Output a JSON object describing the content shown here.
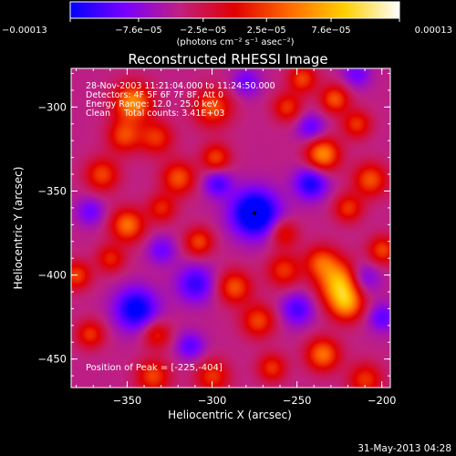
{
  "chart_data": {
    "type": "heatmap",
    "title": "Reconstructed RHESSI Image",
    "xlabel": "Heliocentric X (arcsec)",
    "ylabel": "Heliocentric Y (arcsec)",
    "xlim": [
      -383,
      -195
    ],
    "ylim": [
      -467,
      -277
    ],
    "x_ticks": [
      -350,
      -300,
      -250,
      -200
    ],
    "x_tick_labels": [
      "−350",
      "−300",
      "−250",
      "−200"
    ],
    "y_ticks": [
      -300,
      -350,
      -400,
      -450
    ],
    "y_tick_labels": [
      "−300",
      "−350",
      "−400",
      "−450"
    ],
    "colorbar": {
      "min": -0.00013,
      "max": 0.00013,
      "tick_values": [
        -0.00013,
        -7.6e-05,
        -2.5e-05,
        2.5e-05,
        7.6e-05,
        0.00013
      ],
      "tick_labels": [
        "−0.00013",
        "−7.6e−05",
        "−2.5e−05",
        "2.5e−05",
        "7.6e−05",
        "0.00013"
      ],
      "unit_label": "(photons cm⁻² s⁻¹ asec⁻²)",
      "colormap": [
        "#0000ff",
        "#7a00ff",
        "#c02080",
        "#e00000",
        "#ff6a00",
        "#ffd000",
        "#ffffff"
      ]
    },
    "annotations": [
      "28-Nov-2003 11:21:04.000 to 11:24:50.000",
      "Detectors: 4F 5F 6F 7F 8F, Att 0",
      "Energy Range: 12.0 - 25.0 keV",
      "Clean     Total counts: 3.41E+03"
    ],
    "peak_label": "Position of Peak = [-225,-404]",
    "peak_position": [
      -225,
      -404
    ],
    "marker_position": [
      -275,
      -363
    ],
    "blobs": [
      {
        "x": -224,
        "y": -405,
        "s": 9,
        "v": 1.0
      },
      {
        "x": -221,
        "y": -418,
        "s": 7,
        "v": 0.6
      },
      {
        "x": -236,
        "y": -392,
        "s": 7,
        "v": 0.55
      },
      {
        "x": -258,
        "y": -397,
        "s": 7,
        "v": 0.5
      },
      {
        "x": -347,
        "y": -297,
        "s": 8,
        "v": 0.8
      },
      {
        "x": -352,
        "y": -317,
        "s": 7,
        "v": 0.55
      },
      {
        "x": -333,
        "y": -318,
        "s": 7,
        "v": 0.5
      },
      {
        "x": -350,
        "y": -370,
        "s": 7,
        "v": 0.7
      },
      {
        "x": -365,
        "y": -340,
        "s": 7,
        "v": 0.55
      },
      {
        "x": -320,
        "y": -342,
        "s": 7,
        "v": 0.6
      },
      {
        "x": -300,
        "y": -300,
        "s": 8,
        "v": 0.6
      },
      {
        "x": -298,
        "y": -330,
        "s": 6,
        "v": 0.55
      },
      {
        "x": -308,
        "y": -380,
        "s": 6,
        "v": 0.55
      },
      {
        "x": -287,
        "y": -407,
        "s": 7,
        "v": 0.6
      },
      {
        "x": -273,
        "y": -427,
        "s": 7,
        "v": 0.55
      },
      {
        "x": -235,
        "y": -447,
        "s": 7,
        "v": 0.7
      },
      {
        "x": -210,
        "y": -462,
        "s": 7,
        "v": 0.5
      },
      {
        "x": -235,
        "y": -328,
        "s": 7,
        "v": 0.8
      },
      {
        "x": -228,
        "y": -295,
        "s": 6,
        "v": 0.6
      },
      {
        "x": -247,
        "y": -283,
        "s": 6,
        "v": 0.55
      },
      {
        "x": -207,
        "y": -343,
        "s": 7,
        "v": 0.6
      },
      {
        "x": -220,
        "y": -360,
        "s": 6,
        "v": 0.5
      },
      {
        "x": -200,
        "y": -385,
        "s": 6,
        "v": 0.55
      },
      {
        "x": -215,
        "y": -310,
        "s": 6,
        "v": 0.5
      },
      {
        "x": -380,
        "y": -400,
        "s": 6,
        "v": 0.55
      },
      {
        "x": -360,
        "y": -390,
        "s": 6,
        "v": 0.45
      },
      {
        "x": -372,
        "y": -435,
        "s": 6,
        "v": 0.5
      },
      {
        "x": -333,
        "y": -435,
        "s": 6,
        "v": 0.45
      },
      {
        "x": -335,
        "y": -460,
        "s": 7,
        "v": 0.55
      },
      {
        "x": -300,
        "y": -460,
        "s": 7,
        "v": 0.5
      },
      {
        "x": -265,
        "y": -455,
        "s": 6,
        "v": 0.5
      },
      {
        "x": -258,
        "y": -375,
        "s": 6,
        "v": 0.45
      },
      {
        "x": -256,
        "y": -300,
        "s": 6,
        "v": 0.5
      },
      {
        "x": -330,
        "y": -360,
        "s": 6,
        "v": 0.45
      },
      {
        "x": -275,
        "y": -363,
        "s": 10,
        "v": -0.9
      },
      {
        "x": -345,
        "y": -420,
        "s": 9,
        "v": -0.7
      },
      {
        "x": -310,
        "y": -405,
        "s": 8,
        "v": -0.5
      },
      {
        "x": -242,
        "y": -345,
        "s": 7,
        "v": -0.6
      },
      {
        "x": -212,
        "y": -402,
        "s": 7,
        "v": -0.5
      },
      {
        "x": -297,
        "y": -345,
        "s": 6,
        "v": -0.45
      },
      {
        "x": -250,
        "y": -420,
        "s": 7,
        "v": -0.45
      },
      {
        "x": -313,
        "y": -442,
        "s": 6,
        "v": -0.4
      },
      {
        "x": -242,
        "y": -312,
        "s": 6,
        "v": -0.4
      },
      {
        "x": -200,
        "y": -425,
        "s": 6,
        "v": -0.4
      },
      {
        "x": -372,
        "y": -362,
        "s": 6,
        "v": -0.35
      },
      {
        "x": -330,
        "y": -385,
        "s": 6,
        "v": -0.35
      },
      {
        "x": -280,
        "y": -285,
        "s": 6,
        "v": -0.35
      },
      {
        "x": -215,
        "y": -280,
        "s": 6,
        "v": -0.35
      }
    ],
    "background_level": -0.35
  },
  "footer": {
    "timestamp": "31-May-2013 04:28"
  }
}
